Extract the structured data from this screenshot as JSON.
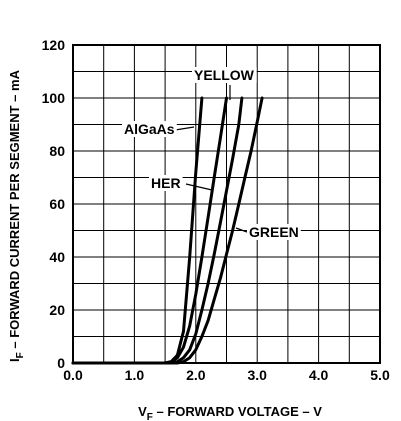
{
  "chart_data": {
    "type": "line",
    "xlabel_main": "V",
    "xlabel_sub": "F",
    "xlabel_rest": " – FORWARD VOLTAGE – V",
    "ylabel_main": "I",
    "ylabel_sub": "F",
    "ylabel_rest": " – FORWARD CURRENT PER SEGMENT – mA",
    "xlim": [
      0,
      5
    ],
    "ylim": [
      0,
      120
    ],
    "xticks": [
      "0.0",
      "1.0",
      "2.0",
      "3.0",
      "4.0",
      "5.0"
    ],
    "yticks": [
      "0",
      "20",
      "40",
      "60",
      "80",
      "100",
      "120"
    ],
    "grid": true,
    "series": [
      {
        "name": "AlGaAs",
        "color": "#000000",
        "x": [
          0.0,
          1.5,
          1.6,
          1.7,
          1.8,
          1.9,
          2.0,
          2.1
        ],
        "y": [
          0,
          0,
          0.5,
          3,
          12,
          40,
          72,
          100
        ]
      },
      {
        "name": "HER",
        "color": "#000000",
        "x": [
          0.0,
          1.5,
          1.6,
          1.7,
          1.8,
          1.9,
          2.0,
          2.1,
          2.2,
          2.3,
          2.4,
          2.5
        ],
        "y": [
          0,
          0,
          0.5,
          2,
          6,
          14,
          26,
          40,
          55,
          70,
          85,
          100
        ]
      },
      {
        "name": "YELLOW",
        "color": "#000000",
        "x": [
          0.0,
          1.6,
          1.7,
          1.8,
          1.9,
          2.0,
          2.1,
          2.2,
          2.3,
          2.4,
          2.5,
          2.6,
          2.7,
          2.75
        ],
        "y": [
          0,
          0,
          0.5,
          2,
          5,
          11,
          20,
          30,
          41,
          53,
          65,
          77,
          90,
          100
        ]
      },
      {
        "name": "GREEN",
        "color": "#000000",
        "x": [
          0.0,
          1.7,
          1.8,
          1.9,
          2.0,
          2.1,
          2.2,
          2.3,
          2.4,
          2.5,
          2.6,
          2.7,
          2.8,
          2.9,
          3.0,
          3.08
        ],
        "y": [
          0,
          0,
          0.5,
          2,
          5,
          10,
          16,
          24,
          32,
          41,
          50,
          60,
          70,
          80,
          91,
          100
        ]
      }
    ]
  }
}
